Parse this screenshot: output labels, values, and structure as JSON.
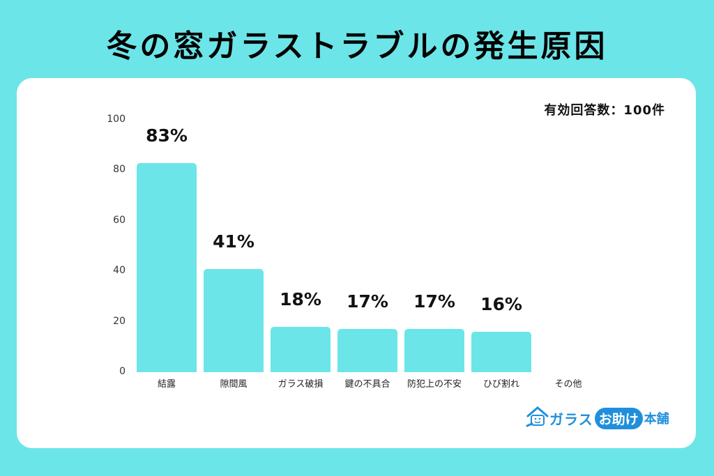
{
  "title": "冬の窓ガラストラブルの発生原因",
  "respondents_label": "有効回答数：100件",
  "colors": {
    "background": "#6ce5e8",
    "bar": "#6ce5e8",
    "card": "#ffffff",
    "brand": "#1f8fdc"
  },
  "logo": {
    "icon": "house-mascot-icon",
    "text1": "ガラス",
    "bubble": "お助け",
    "text2": "本舗"
  },
  "chart_data": {
    "type": "bar",
    "title": "冬の窓ガラストラブルの発生原因",
    "subtitle": "有効回答数：100件",
    "categories": [
      "結露",
      "隙間風",
      "ガラス破損",
      "鍵の不具合",
      "防犯上の不安",
      "ひび割れ",
      "その他"
    ],
    "values": [
      83,
      41,
      18,
      17,
      17,
      16,
      0
    ],
    "labels": [
      "83%",
      "41%",
      "18%",
      "17%",
      "17%",
      "16%",
      ""
    ],
    "xlabel": "",
    "ylabel": "",
    "ylim": [
      0,
      100
    ],
    "yticks": [
      "0",
      "20",
      "40",
      "60",
      "80",
      "100"
    ],
    "grid": false,
    "legend": "none"
  }
}
